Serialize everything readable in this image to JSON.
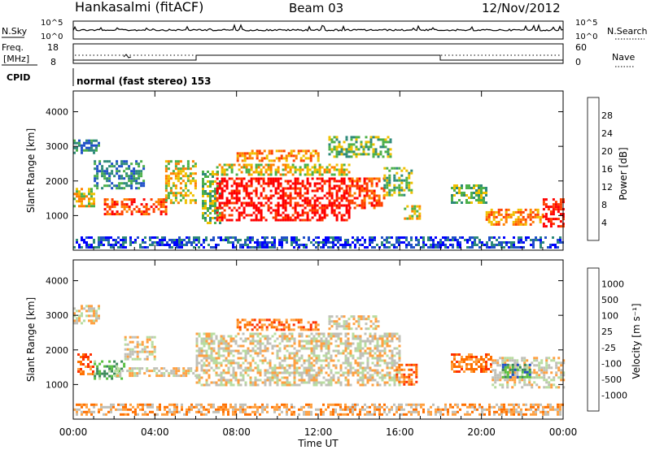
{
  "header": {
    "station": "Hankasalmi (fitACF)",
    "beam": "Beam 03",
    "date": "12/Nov/2012"
  },
  "top_panels": {
    "nsky_label": "N.Sky",
    "nsky_ticks": [
      "10^5",
      "10^0"
    ],
    "nsearch_label": "N.Search",
    "nsearch_ticks": [
      "10^5",
      "10^0"
    ],
    "freq_label_line1": "Freq.",
    "freq_label_line2": "[MHz]",
    "freq_ticks": [
      "18",
      "8"
    ],
    "nave_label": "Nave",
    "nave_ticks": [
      "60",
      "0"
    ],
    "cpid_label": "CPID",
    "cpid_text": "normal (fast stereo) 153"
  },
  "chart_data": [
    {
      "type": "heatmap",
      "name": "power",
      "xlabel": "Time UT",
      "ylabel": "Slant Range [km]",
      "x_range_hours": [
        0,
        24
      ],
      "x_ticks": [
        "00:00",
        "04:00",
        "08:00",
        "12:00",
        "16:00",
        "20:00",
        "00:00"
      ],
      "ylim": [
        0,
        4600
      ],
      "y_ticks": [
        1000,
        2000,
        3000,
        4000
      ],
      "colorbar_label": "Power [dB]",
      "colorbar_ticks": [
        "4",
        "8",
        "12",
        "16",
        "20",
        "24",
        "28"
      ],
      "colorbar_colors": [
        "#0000ff",
        "#2050c8",
        "#2e8a7a",
        "#4cb04a",
        "#f0c000",
        "#ff8000",
        "#ff4000",
        "#ff0000"
      ],
      "echo_regions": [
        {
          "t": [
            0.0,
            1.0
          ],
          "r": [
            1300,
            1800
          ],
          "level": 4
        },
        {
          "t": [
            0.0,
            1.2
          ],
          "r": [
            2800,
            3200
          ],
          "level": 2
        },
        {
          "t": [
            1.0,
            3.5
          ],
          "r": [
            1800,
            2600
          ],
          "level": 2
        },
        {
          "t": [
            1.5,
            4.5
          ],
          "r": [
            1050,
            1500
          ],
          "level": 6
        },
        {
          "t": [
            4.5,
            6.0
          ],
          "r": [
            1400,
            2600
          ],
          "level": 4
        },
        {
          "t": [
            6.3,
            7.2
          ],
          "r": [
            800,
            2300
          ],
          "level": 3
        },
        {
          "t": [
            7.0,
            13.5
          ],
          "r": [
            850,
            2100
          ],
          "level": 7
        },
        {
          "t": [
            13.5,
            15.2
          ],
          "r": [
            1200,
            2100
          ],
          "level": 6
        },
        {
          "t": [
            7.0,
            13.5
          ],
          "r": [
            2150,
            2500
          ],
          "level": 4
        },
        {
          "t": [
            8.0,
            12.0
          ],
          "r": [
            2600,
            2900
          ],
          "level": 5
        },
        {
          "t": [
            12.5,
            15.5
          ],
          "r": [
            2700,
            3300
          ],
          "level": 3
        },
        {
          "t": [
            15.2,
            16.6
          ],
          "r": [
            1600,
            2400
          ],
          "level": 3
        },
        {
          "t": [
            16.2,
            17.0
          ],
          "r": [
            900,
            1300
          ],
          "level": 4
        },
        {
          "t": [
            18.5,
            20.2
          ],
          "r": [
            1400,
            1900
          ],
          "level": 3
        },
        {
          "t": [
            20.2,
            23.0
          ],
          "r": [
            750,
            1200
          ],
          "level": 5
        },
        {
          "t": [
            23.0,
            24.0
          ],
          "r": [
            700,
            1500
          ],
          "level": 7
        },
        {
          "t": [
            0.0,
            24.0
          ],
          "r": [
            100,
            400
          ],
          "level": 1
        }
      ]
    },
    {
      "type": "heatmap",
      "name": "velocity",
      "xlabel": "Time UT",
      "ylabel": "Slant Range [km]",
      "x_range_hours": [
        0,
        24
      ],
      "x_ticks": [
        "00:00",
        "04:00",
        "08:00",
        "12:00",
        "16:00",
        "20:00",
        "00:00"
      ],
      "ylim": [
        0,
        4600
      ],
      "y_ticks": [
        1000,
        2000,
        3000,
        4000
      ],
      "colorbar_label": "Velocity [m s⁻¹]",
      "colorbar_ticks": [
        "1000",
        "500",
        "100",
        "25",
        "-25",
        "-100",
        "-500",
        "-1000"
      ],
      "colorbar_colors": [
        "#2050c8",
        "#3c8a5a",
        "#58c040",
        "#b8dca0",
        "#c0c0b8",
        "#ffa040",
        "#ff7000",
        "#ff3000",
        "#ff0000"
      ],
      "echo_regions": [
        {
          "t": [
            0.0,
            1.2
          ],
          "r": [
            2800,
            3300
          ],
          "level": 4
        },
        {
          "t": [
            0.2,
            1.0
          ],
          "r": [
            1300,
            1900
          ],
          "level": 6
        },
        {
          "t": [
            1.0,
            2.5
          ],
          "r": [
            1200,
            1700
          ],
          "level": 2
        },
        {
          "t": [
            2.0,
            6.0
          ],
          "r": [
            1250,
            1500
          ],
          "level": 4
        },
        {
          "t": [
            2.5,
            4.0
          ],
          "r": [
            1700,
            2400
          ],
          "level": 4
        },
        {
          "t": [
            6.0,
            16.0
          ],
          "r": [
            1000,
            2500
          ],
          "level": 4
        },
        {
          "t": [
            8.0,
            12.0
          ],
          "r": [
            2600,
            2900
          ],
          "level": 6
        },
        {
          "t": [
            12.5,
            15.0
          ],
          "r": [
            2600,
            3000
          ],
          "level": 4
        },
        {
          "t": [
            15.8,
            16.8
          ],
          "r": [
            1000,
            1600
          ],
          "level": 6
        },
        {
          "t": [
            18.5,
            20.5
          ],
          "r": [
            1400,
            1900
          ],
          "level": 6
        },
        {
          "t": [
            20.5,
            24.0
          ],
          "r": [
            900,
            1800
          ],
          "level": 4
        },
        {
          "t": [
            21.0,
            22.5
          ],
          "r": [
            1200,
            1600
          ],
          "level": 1
        },
        {
          "t": [
            0.0,
            24.0
          ],
          "r": [
            100,
            450
          ],
          "level": 5
        }
      ]
    }
  ]
}
